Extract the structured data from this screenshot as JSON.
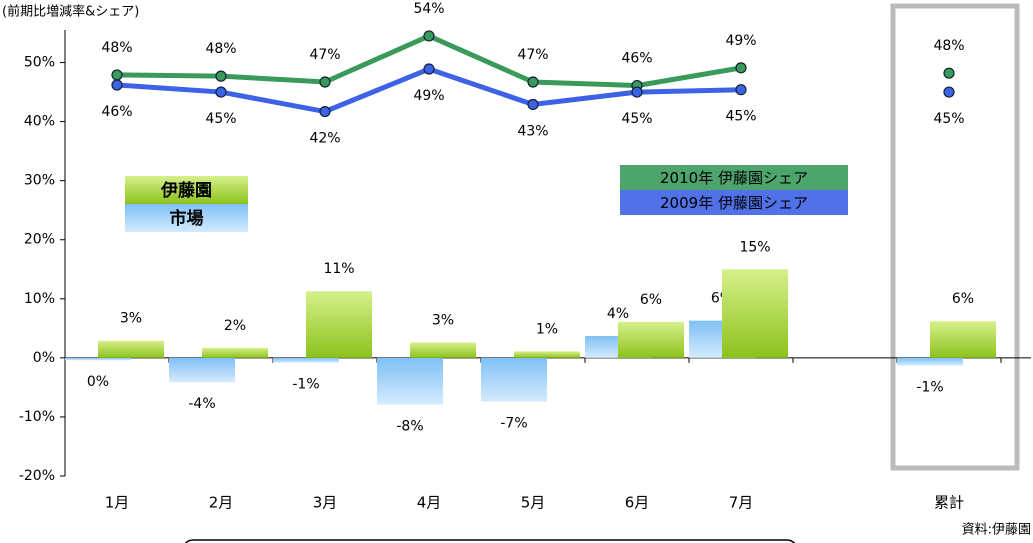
{
  "chart_data": {
    "type": "bar",
    "y_label": "(前期比増減率&シェア)",
    "source": "資料:伊藤園",
    "categories": [
      "1月",
      "2月",
      "3月",
      "4月",
      "5月",
      "6月",
      "7月",
      null,
      "累計"
    ],
    "series": [
      {
        "name": "市場",
        "type": "bar",
        "color": "#a8d4f7",
        "values": [
          -0.4,
          -4.1,
          -0.8,
          -7.9,
          -7.4,
          3.7,
          6.3,
          null,
          -1.3
        ],
        "value_labels": [
          "0%",
          "-4%",
          "-1%",
          "-8%",
          "-7%",
          "4%",
          "6%",
          null,
          "-1%"
        ]
      },
      {
        "name": "伊藤園",
        "type": "bar",
        "color": "#99cc33",
        "values": [
          2.9,
          1.7,
          11.3,
          2.6,
          1.1,
          6.1,
          15.0,
          null,
          6.2
        ],
        "value_labels": [
          "3%",
          "2%",
          "11%",
          "3%",
          "1%",
          "6%",
          "15%",
          null,
          "6%"
        ]
      },
      {
        "name": "2010年 伊藤園シェア",
        "type": "line",
        "color": "#3a9a5c",
        "values": [
          47.9,
          47.7,
          46.7,
          54.5,
          46.7,
          46.1,
          49.1,
          null,
          48.2
        ],
        "value_labels": [
          "48%",
          "48%",
          "47%",
          "54%",
          "47%",
          "46%",
          "49%",
          null,
          "48%"
        ]
      },
      {
        "name": "2009年 伊藤園シェア",
        "type": "line",
        "color": "#3d62e6",
        "values": [
          46.2,
          45.0,
          41.7,
          48.9,
          42.9,
          45.0,
          45.4,
          null,
          45.0
        ],
        "value_labels": [
          "46%",
          "45%",
          "42%",
          "49%",
          "43%",
          "45%",
          "45%",
          null,
          "45%"
        ]
      }
    ],
    "ylim": [
      -20,
      55
    ],
    "yticks": [
      {
        "value": -20,
        "label": "-20%"
      },
      {
        "value": -10,
        "label": "-10%"
      },
      {
        "value": 0,
        "label": "0%"
      },
      {
        "value": 10,
        "label": "10%"
      },
      {
        "value": 20,
        "label": "20%"
      },
      {
        "value": 30,
        "label": "30%"
      },
      {
        "value": 40,
        "label": "40%"
      },
      {
        "value": 50,
        "label": "50%"
      }
    ]
  }
}
